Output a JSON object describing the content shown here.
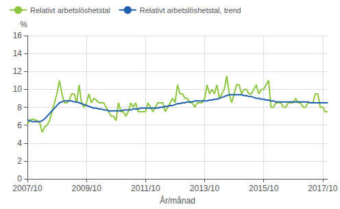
{
  "chart_data": {
    "type": "line",
    "xlabel": "År/månad",
    "ylabel": "%",
    "categories": [
      "2007/10",
      null,
      null,
      null,
      null,
      null,
      null,
      null,
      null,
      null,
      null,
      null,
      null,
      null,
      null,
      null,
      null,
      null,
      null,
      null,
      null,
      null,
      null,
      null,
      "2009/10",
      null,
      null,
      null,
      null,
      null,
      null,
      null,
      null,
      null,
      null,
      null,
      null,
      null,
      null,
      null,
      null,
      null,
      null,
      null,
      null,
      null,
      null,
      null,
      "2011/10",
      null,
      null,
      null,
      null,
      null,
      null,
      null,
      null,
      null,
      null,
      null,
      null,
      null,
      null,
      null,
      null,
      null,
      null,
      null,
      null,
      null,
      null,
      null,
      "2013/10",
      null,
      null,
      null,
      null,
      null,
      null,
      null,
      null,
      null,
      null,
      null,
      null,
      null,
      null,
      null,
      null,
      null,
      null,
      null,
      null,
      null,
      null,
      null,
      "2015/10",
      null,
      null,
      null,
      null,
      null,
      null,
      null,
      null,
      null,
      null,
      null,
      null,
      null,
      null,
      null,
      null,
      null,
      null,
      null,
      null,
      null,
      null,
      null,
      "2017/10",
      null,
      null
    ],
    "series": [
      {
        "name": "Relativt arbetslöshetstal",
        "color": "#8DC63F",
        "values": [
          6.1,
          6.5,
          6.7,
          6.6,
          6.5,
          6.3,
          5.2,
          5.8,
          6.0,
          6.5,
          7.5,
          8.5,
          9.5,
          11.0,
          9.5,
          8.5,
          8.5,
          8.8,
          9.5,
          9.5,
          8.5,
          10.5,
          8.5,
          8.0,
          8.5,
          9.5,
          8.5,
          9.0,
          8.8,
          8.5,
          8.5,
          8.5,
          8.0,
          7.5,
          7.0,
          7.0,
          6.5,
          8.5,
          7.5,
          7.5,
          7.0,
          7.5,
          8.5,
          8.0,
          8.5,
          7.5,
          7.5,
          7.5,
          7.5,
          8.5,
          8.0,
          7.5,
          8.0,
          8.5,
          8.5,
          8.5,
          7.5,
          8.0,
          8.5,
          9.0,
          8.5,
          10.5,
          9.5,
          9.5,
          9.0,
          9.0,
          8.5,
          8.5,
          8.0,
          8.5,
          8.5,
          8.5,
          9.0,
          10.5,
          9.5,
          10.0,
          9.5,
          10.5,
          9.0,
          9.5,
          10.0,
          11.5,
          9.5,
          8.5,
          9.5,
          10.5,
          10.5,
          9.5,
          10.0,
          10.0,
          9.5,
          9.5,
          10.0,
          10.5,
          9.5,
          10.0,
          10.0,
          10.5,
          11.0,
          8.0,
          8.0,
          8.5,
          8.5,
          8.5,
          8.0,
          8.0,
          8.5,
          8.5,
          8.5,
          9.0,
          8.5,
          8.5,
          8.0,
          8.0,
          8.5,
          8.5,
          8.5,
          9.5,
          9.5,
          8.0,
          8.0,
          7.5,
          7.5
        ]
      },
      {
        "name": "Relativt arbetslöshetstal, trend",
        "color": "#1F5FAD",
        "values": [
          6.6,
          6.5,
          6.4,
          6.4,
          6.4,
          6.4,
          6.5,
          6.7,
          7.0,
          7.3,
          7.6,
          7.9,
          8.2,
          8.5,
          8.6,
          8.7,
          8.7,
          8.7,
          8.7,
          8.6,
          8.6,
          8.5,
          8.4,
          8.3,
          8.2,
          8.1,
          8.0,
          7.9,
          7.9,
          7.8,
          7.8,
          7.7,
          7.7,
          7.6,
          7.6,
          7.6,
          7.6,
          7.6,
          7.6,
          7.7,
          7.7,
          7.7,
          7.7,
          7.8,
          7.8,
          7.8,
          7.9,
          7.9,
          7.9,
          7.9,
          7.9,
          7.9,
          7.9,
          7.9,
          8.0,
          8.0,
          8.1,
          8.1,
          8.2,
          8.2,
          8.3,
          8.4,
          8.4,
          8.5,
          8.5,
          8.6,
          8.6,
          8.6,
          8.7,
          8.7,
          8.7,
          8.7,
          8.7,
          8.7,
          8.8,
          8.8,
          8.9,
          8.9,
          9.0,
          9.1,
          9.2,
          9.3,
          9.4,
          9.4,
          9.4,
          9.4,
          9.4,
          9.4,
          9.3,
          9.3,
          9.2,
          9.2,
          9.1,
          9.0,
          9.0,
          8.9,
          8.9,
          8.8,
          8.8,
          8.7,
          8.7,
          8.6,
          8.6,
          8.6,
          8.6,
          8.6,
          8.6,
          8.6,
          8.6,
          8.6,
          8.6,
          8.6,
          8.6,
          8.6,
          8.6,
          8.5,
          8.5,
          8.5,
          8.5,
          8.5,
          8.5,
          8.5,
          8.5
        ]
      }
    ],
    "ylim": [
      0,
      16
    ],
    "yticks": [
      0,
      2,
      4,
      6,
      8,
      10,
      12,
      14,
      16
    ],
    "grid": true,
    "legend": "upper left"
  }
}
